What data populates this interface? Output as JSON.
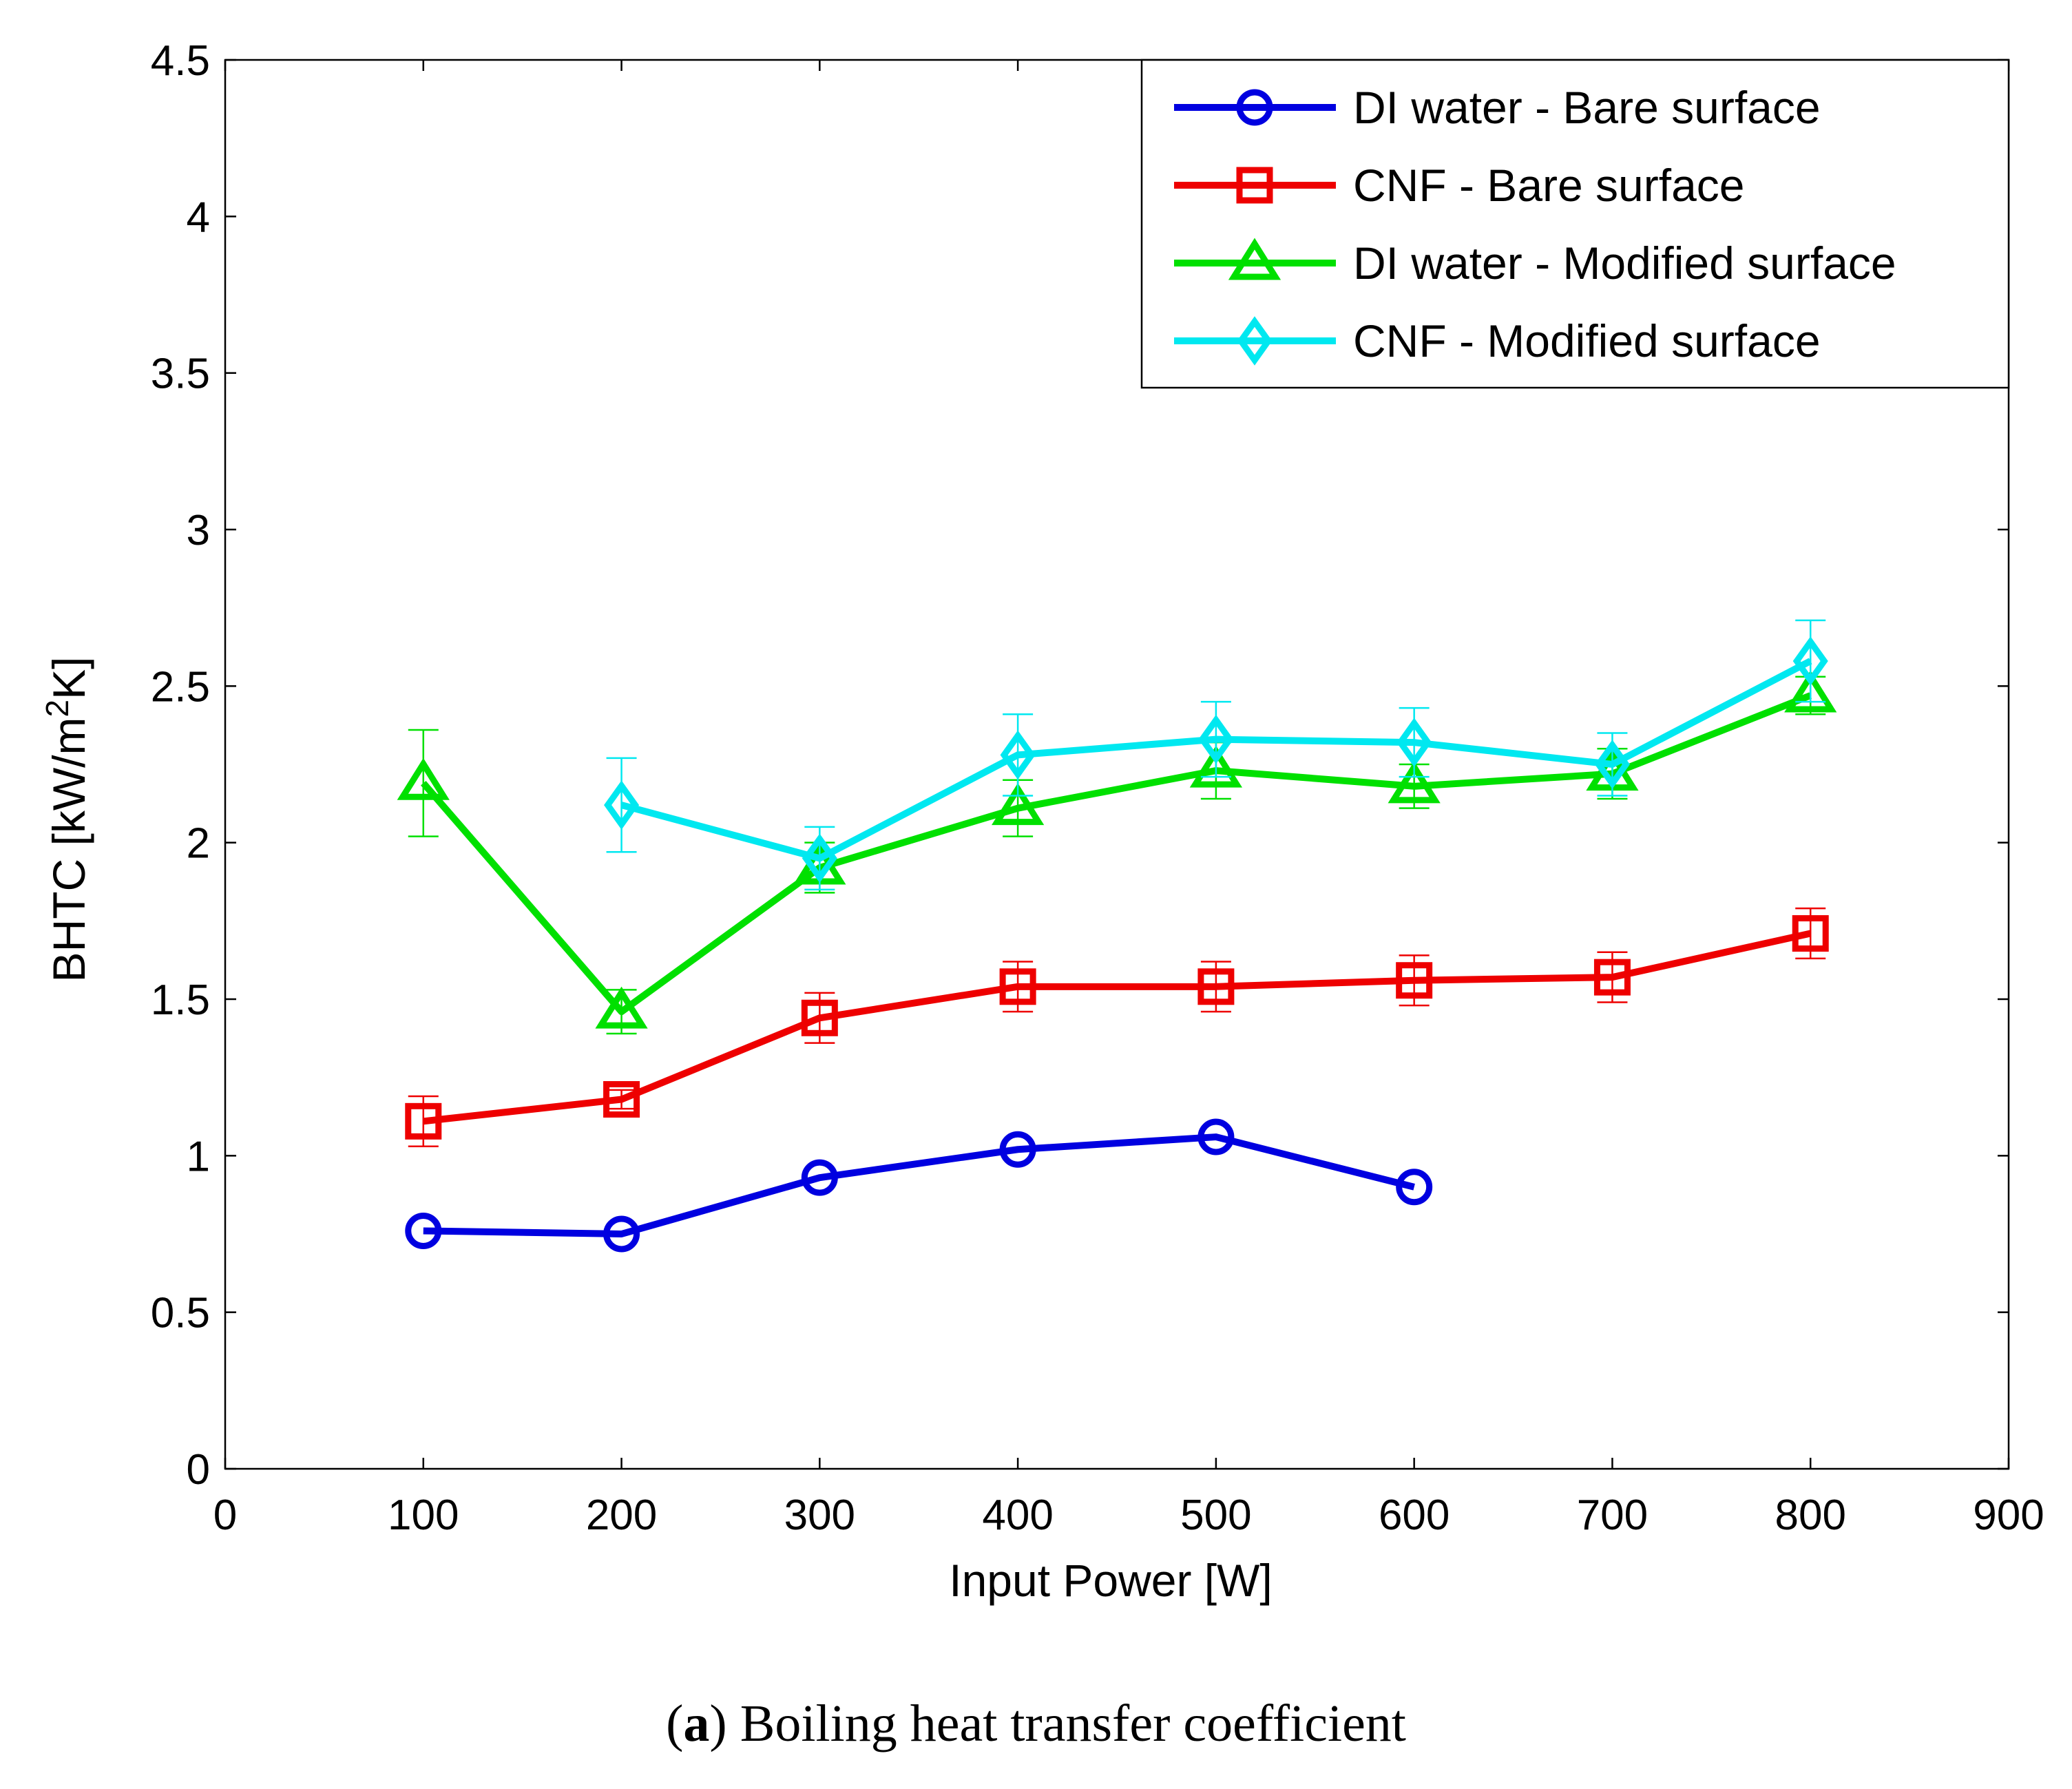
{
  "chart_data": {
    "type": "line",
    "title": "",
    "xlabel": "Input Power [W]",
    "ylabel_main": "BHTC [kW/m",
    "ylabel_sup": "2",
    "ylabel_end": "K]",
    "xlim": [
      0,
      900
    ],
    "ylim": [
      0,
      4.5
    ],
    "xticks": [
      0,
      100,
      200,
      300,
      400,
      500,
      600,
      700,
      800,
      900
    ],
    "yticks": [
      0,
      0.5,
      1,
      1.5,
      2,
      2.5,
      3,
      3.5,
      4,
      4.5
    ],
    "xtick_labels": [
      "0",
      "100",
      "200",
      "300",
      "400",
      "500",
      "600",
      "700",
      "800",
      "900"
    ],
    "ytick_labels": [
      "0",
      "0.5",
      "1",
      "1.5",
      "2",
      "2.5",
      "3",
      "3.5",
      "4",
      "4.5"
    ],
    "grid": false,
    "legend_position": "top-right",
    "series": [
      {
        "name": "DI water - Bare surface",
        "color": "#0000e0",
        "marker": "circle",
        "x": [
          100,
          200,
          300,
          400,
          500,
          600
        ],
        "y": [
          0.76,
          0.75,
          0.93,
          1.02,
          1.06,
          0.9
        ],
        "err": [
          0,
          0,
          0,
          0,
          0,
          0
        ]
      },
      {
        "name": "CNF - Bare surface",
        "color": "#ee0000",
        "marker": "square",
        "x": [
          100,
          200,
          300,
          400,
          500,
          600,
          700,
          800
        ],
        "y": [
          1.11,
          1.18,
          1.44,
          1.54,
          1.54,
          1.56,
          1.57,
          1.71
        ],
        "err": [
          0.08,
          0.03,
          0.08,
          0.08,
          0.08,
          0.08,
          0.08,
          0.08
        ]
      },
      {
        "name": "DI water - Modified surface",
        "color": "#00e000",
        "marker": "triangle",
        "x": [
          100,
          200,
          300,
          400,
          500,
          600,
          700,
          800
        ],
        "y": [
          2.19,
          1.46,
          1.92,
          2.11,
          2.23,
          2.18,
          2.22,
          2.47
        ],
        "err": [
          0.17,
          0.07,
          0.08,
          0.09,
          0.09,
          0.07,
          0.08,
          0.06
        ]
      },
      {
        "name": "CNF - Modified surface",
        "color": "#00e8f0",
        "marker": "diamond",
        "x": [
          200,
          300,
          400,
          500,
          600,
          700,
          800
        ],
        "y": [
          2.12,
          1.95,
          2.28,
          2.33,
          2.32,
          2.25,
          2.58
        ],
        "err": [
          0.15,
          0.1,
          0.13,
          0.12,
          0.11,
          0.1,
          0.13
        ]
      }
    ]
  },
  "caption": {
    "label": "a",
    "text": " Boiling heat transfer coefficient"
  }
}
